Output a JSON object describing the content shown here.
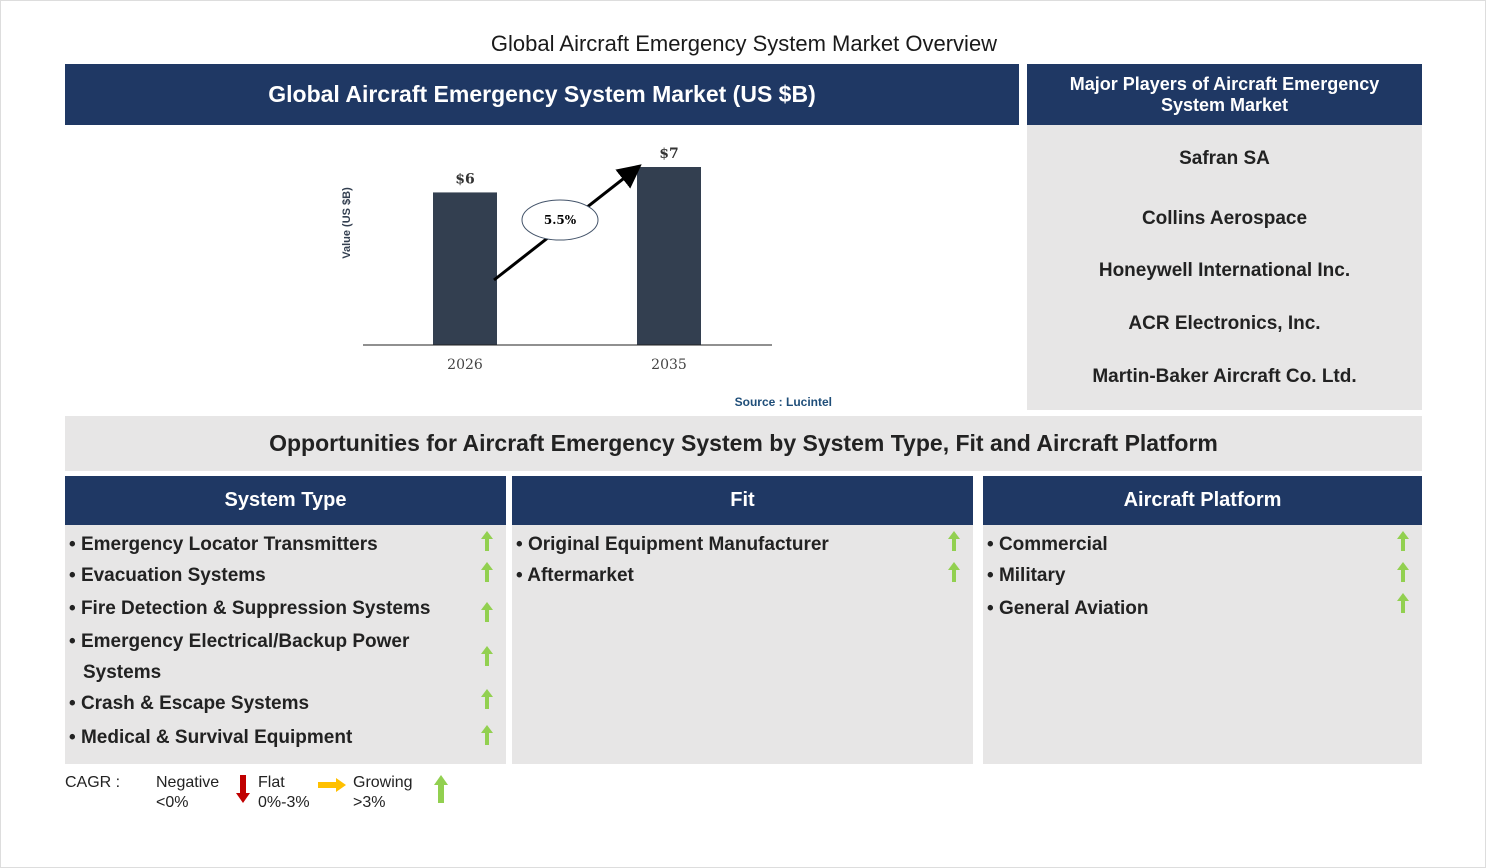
{
  "title": "Global Aircraft Emergency System Market Overview",
  "market_header": "Global Aircraft Emergency System Market (US $B)",
  "players_header": "Major Players of Aircraft Emergency System Market",
  "players": [
    "Safran SA",
    "Collins Aerospace",
    "Honeywell International Inc.",
    "ACR Electronics, Inc.",
    "Martin-Baker Aircraft Co. Ltd."
  ],
  "chart_data": {
    "type": "bar",
    "categories": [
      "2026",
      "2035"
    ],
    "values": [
      6,
      7
    ],
    "data_labels": [
      "$6",
      "$7"
    ],
    "ylabel": "Value (US $B)",
    "annotation": "5.5%",
    "source": "Source : Lucintel",
    "bar_color": "#333f50"
  },
  "opportunities_header": "Opportunities for Aircraft Emergency System by System Type, Fit and Aircraft Platform",
  "columns": [
    {
      "header": "System Type",
      "items": [
        "Emergency Locator Transmitters",
        "Evacuation Systems",
        "Fire Detection & Suppression Systems",
        "Emergency Electrical/Backup Power Systems",
        "Crash & Escape Systems",
        "Medical & Survival Equipment"
      ],
      "trend": [
        "growing",
        "growing",
        "growing",
        "growing",
        "growing",
        "growing"
      ]
    },
    {
      "header": "Fit",
      "items": [
        "Original Equipment Manufacturer",
        "Aftermarket"
      ],
      "trend": [
        "growing",
        "growing"
      ]
    },
    {
      "header": "Aircraft Platform",
      "items": [
        "Commercial",
        "Military",
        "General Aviation"
      ],
      "trend": [
        "growing",
        "growing",
        "growing"
      ]
    }
  ],
  "legend": {
    "label": "CAGR :",
    "negative": "Negative",
    "negative_range": "<0%",
    "flat": "Flat",
    "flat_range": "0%-3%",
    "growing": "Growing",
    "growing_range": ">3%"
  },
  "colors": {
    "navy": "#1f3864",
    "grey": "#e7e6e6",
    "growing": "#92d050",
    "flat": "#ffc000",
    "negative": "#c00000"
  }
}
